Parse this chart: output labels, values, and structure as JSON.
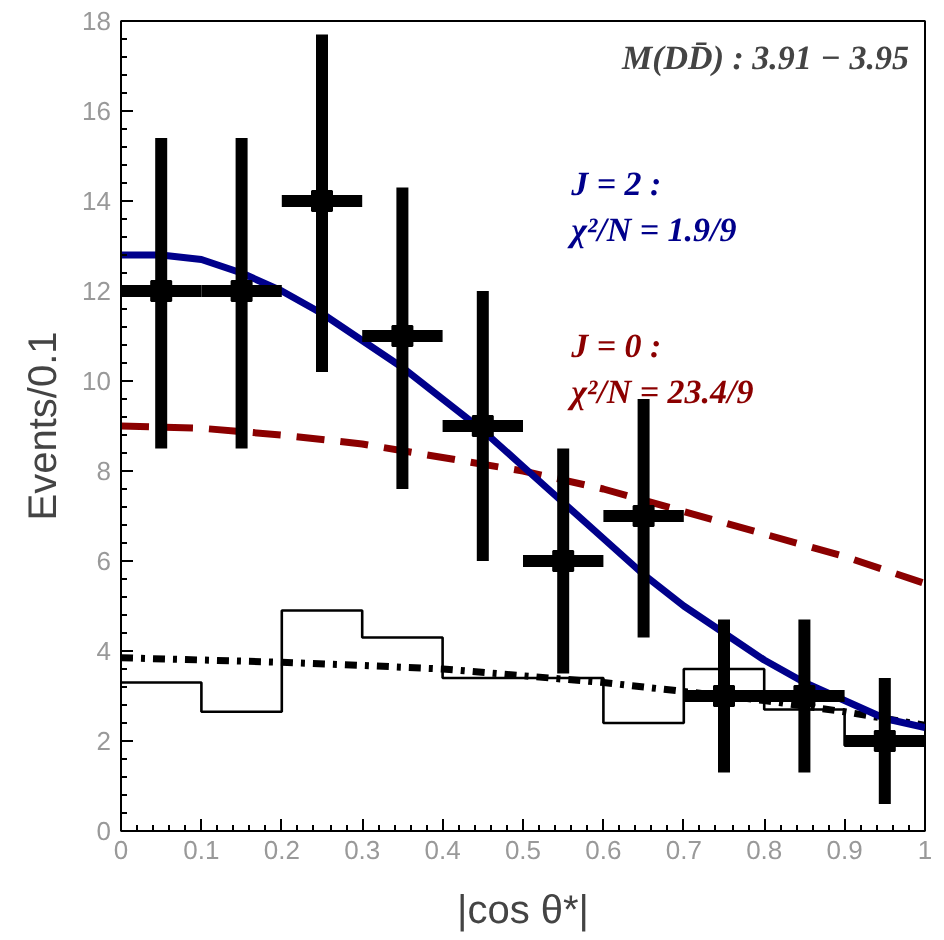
{
  "chart_data": {
    "type": "scatter",
    "xlabel": "|cos θ*|",
    "ylabel": "Events/0.1",
    "annotations": [
      "M(DD̄) : 3.91 − 3.95"
    ],
    "xlim": [
      0,
      1
    ],
    "ylim": [
      0,
      18
    ],
    "xticks": [
      0,
      0.1,
      0.2,
      0.3,
      0.4,
      0.5,
      0.6,
      0.7,
      0.8,
      0.9,
      1
    ],
    "yticks": [
      0,
      2,
      4,
      6,
      8,
      10,
      12,
      14,
      16,
      18
    ],
    "grid": false,
    "series": [
      {
        "type": "step",
        "color": "#000000",
        "line_style": "solid",
        "x": [
          0,
          0.1,
          0.2,
          0.3,
          0.4,
          0.5,
          0.6,
          0.7,
          0.8,
          0.9,
          1.0
        ],
        "values": [
          3.3,
          2.65,
          4.9,
          4.3,
          3.4,
          3.4,
          2.4,
          3.6,
          2.7,
          1.9,
          1.9
        ]
      },
      {
        "type": "line",
        "color": "#000000",
        "line_style": "dashdot",
        "x": [
          0,
          0.1,
          0.2,
          0.3,
          0.4,
          0.5,
          0.6,
          0.7,
          0.8,
          0.9,
          1.0
        ],
        "values": [
          3.85,
          3.8,
          3.75,
          3.68,
          3.6,
          3.45,
          3.3,
          3.1,
          2.9,
          2.65,
          2.35
        ]
      },
      {
        "type": "line",
        "name": "J = 0 :\nχ²/N = 23.4/9",
        "color": "#8b0000",
        "line_style": "dashed",
        "x": [
          0,
          0.1,
          0.2,
          0.3,
          0.4,
          0.5,
          0.6,
          0.7,
          0.8,
          0.9,
          1.0
        ],
        "values": [
          9.0,
          8.95,
          8.8,
          8.6,
          8.3,
          8.0,
          7.6,
          7.1,
          6.6,
          6.1,
          5.5
        ]
      },
      {
        "type": "line",
        "name": "J = 2 :\nχ²/N = 1.9/9",
        "color": "#00008b",
        "line_style": "solid",
        "x": [
          0,
          0.05,
          0.1,
          0.15,
          0.2,
          0.25,
          0.3,
          0.35,
          0.4,
          0.45,
          0.5,
          0.55,
          0.6,
          0.65,
          0.7,
          0.75,
          0.8,
          0.85,
          0.9,
          0.95,
          1.0
        ],
        "values": [
          12.8,
          12.8,
          12.7,
          12.4,
          12.0,
          11.5,
          10.9,
          10.3,
          9.6,
          8.9,
          8.1,
          7.3,
          6.5,
          5.7,
          5.0,
          4.4,
          3.8,
          3.3,
          2.9,
          2.5,
          2.3
        ]
      },
      {
        "color": "#000000",
        "marker": "square",
        "x": [
          0.05,
          0.15,
          0.25,
          0.35,
          0.45,
          0.55,
          0.65,
          0.75,
          0.85,
          0.95
        ],
        "values": [
          12,
          12,
          14,
          11,
          9,
          6,
          7,
          3,
          3,
          2
        ],
        "errors": [
          [
            8.5,
            15.4
          ],
          [
            8.5,
            15.4
          ],
          [
            10.2,
            17.7
          ],
          [
            7.6,
            14.3
          ],
          [
            6.0,
            12.0
          ],
          [
            3.5,
            8.5
          ],
          [
            4.3,
            9.6
          ],
          [
            1.3,
            4.7
          ],
          [
            1.3,
            4.7
          ],
          [
            0.6,
            3.4
          ]
        ],
        "xerrors": [
          0.05,
          0.05,
          0.05,
          0.05,
          0.05,
          0.05,
          0.05,
          0.05,
          0.05,
          0.05
        ]
      }
    ]
  }
}
